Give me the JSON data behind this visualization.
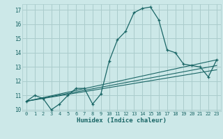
{
  "title": "",
  "xlabel": "Humidex (Indice chaleur)",
  "bg_color": "#cce8e8",
  "grid_color": "#aacccc",
  "line_color": "#1a6666",
  "xlim": [
    -0.5,
    23.5
  ],
  "ylim": [
    9.9,
    17.4
  ],
  "yticks": [
    10,
    11,
    12,
    13,
    14,
    15,
    16,
    17
  ],
  "xticks": [
    0,
    1,
    2,
    3,
    4,
    5,
    6,
    7,
    8,
    9,
    10,
    11,
    12,
    13,
    14,
    15,
    16,
    17,
    18,
    19,
    20,
    21,
    22,
    23
  ],
  "main_line_x": [
    0,
    1,
    2,
    3,
    4,
    5,
    6,
    7,
    8,
    9,
    10,
    11,
    12,
    13,
    14,
    15,
    16,
    17,
    18,
    19,
    20,
    21,
    22,
    23
  ],
  "main_line_y": [
    10.6,
    11.0,
    10.8,
    10.0,
    10.4,
    11.0,
    11.5,
    11.5,
    10.4,
    11.1,
    13.4,
    14.9,
    15.5,
    16.8,
    17.1,
    17.2,
    16.3,
    14.2,
    14.0,
    13.2,
    13.1,
    13.0,
    12.3,
    13.5
  ],
  "reg_line1_x": [
    0,
    23
  ],
  "reg_line1_y": [
    10.6,
    13.1
  ],
  "reg_line2_x": [
    0,
    23
  ],
  "reg_line2_y": [
    10.6,
    12.8
  ],
  "reg_line3_x": [
    0,
    23
  ],
  "reg_line3_y": [
    10.6,
    13.5
  ]
}
